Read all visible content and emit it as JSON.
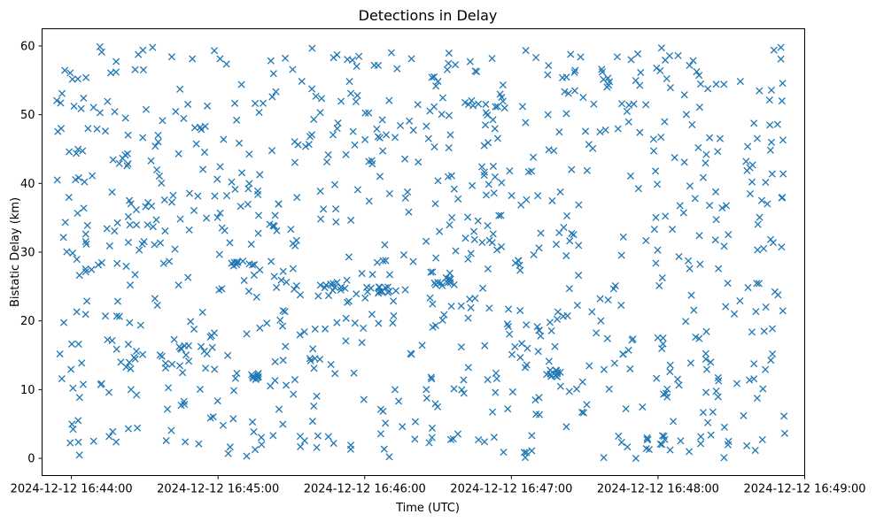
{
  "chart_data": {
    "type": "scatter",
    "title": "Detections in Delay",
    "xlabel": "Time (UTC)",
    "ylabel": "Bistatic Delay (km)",
    "marker": "x",
    "marker_color": "#1f77b4",
    "grid": false,
    "legend": "none",
    "x_is_time": true,
    "x_range": [
      "2024-12-12 16:43:48",
      "2024-12-12 16:49:00"
    ],
    "detections_start": "2024-12-12 16:43:54",
    "detections_end": "2024-12-12 16:48:52",
    "xticks": [
      {
        "time": "2024-12-12 16:44:00",
        "label": "2024-12-12 16:44:00"
      },
      {
        "time": "2024-12-12 16:45:00",
        "label": "2024-12-12 16:45:00"
      },
      {
        "time": "2024-12-12 16:46:00",
        "label": "2024-12-12 16:46:00"
      },
      {
        "time": "2024-12-12 16:47:00",
        "label": "2024-12-12 16:47:00"
      },
      {
        "time": "2024-12-12 16:48:00",
        "label": "2024-12-12 16:48:00"
      },
      {
        "time": "2024-12-12 16:49:00",
        "label": "2024-12-12 16:49:00"
      }
    ],
    "ylim": [
      -2.5,
      62.5
    ],
    "yticks": [
      0,
      10,
      20,
      30,
      40,
      50,
      60
    ],
    "ytick_labels": [
      "0",
      "10",
      "20",
      "30",
      "40",
      "50",
      "60"
    ],
    "point_count": 1000,
    "delay_range": [
      0,
      60
    ],
    "clusters": [
      {
        "time": "2024-12-12 16:45:12",
        "delay": 12.0
      },
      {
        "time": "2024-12-12 16:45:10",
        "delay": 28.5
      },
      {
        "time": "2024-12-12 16:45:48",
        "delay": 25.0
      },
      {
        "time": "2024-12-12 16:46:10",
        "delay": 24.5
      },
      {
        "time": "2024-12-12 16:46:32",
        "delay": 25.7
      },
      {
        "time": "2024-12-12 16:47:18",
        "delay": 12.3
      }
    ]
  }
}
